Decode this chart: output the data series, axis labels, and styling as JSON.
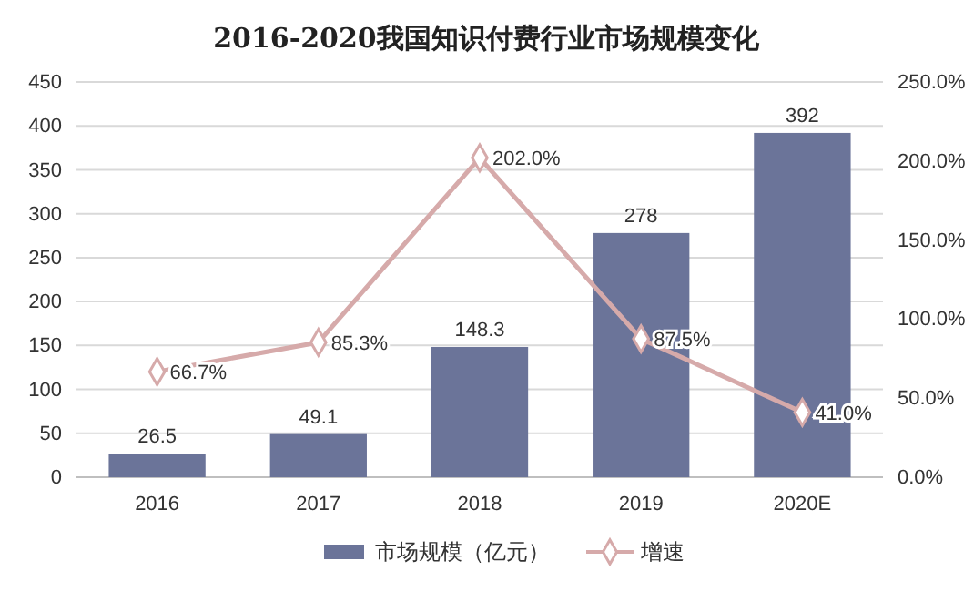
{
  "chart_data": {
    "type": "bar",
    "title": "2016-2020我国知识付费行业市场规模变化",
    "categories": [
      "2016",
      "2017",
      "2018",
      "2019",
      "2020E"
    ],
    "series": [
      {
        "name": "市场规模（亿元）",
        "color": "#6b7499",
        "values": [
          26.5,
          49.1,
          148.3,
          278,
          392
        ],
        "value_labels": [
          "26.5",
          "49.1",
          "148.3",
          "278",
          "392"
        ]
      },
      {
        "name": "增速",
        "type": "line",
        "axis": "y2",
        "color": "#d6aaaa",
        "marker": "diamond",
        "values": [
          66.7,
          85.3,
          202.0,
          87.5,
          41.0
        ],
        "value_labels": [
          "66.7%",
          "85.3%",
          "202.0%",
          "87.5%",
          "41.0%"
        ]
      }
    ],
    "ylim": [
      0,
      450
    ],
    "yticks": [
      0,
      50,
      100,
      150,
      200,
      250,
      300,
      350,
      400,
      450
    ],
    "y2lim": [
      0,
      250
    ],
    "y2ticks": [
      {
        "value": 0,
        "label": "0.0%"
      },
      {
        "value": 50,
        "label": "50.0%"
      },
      {
        "value": 100,
        "label": "100.0%"
      },
      {
        "value": 150,
        "label": "150.0%"
      },
      {
        "value": 200,
        "label": "200.0%"
      },
      {
        "value": 250,
        "label": "250.0%"
      }
    ],
    "grid": "y",
    "legend": "bottom"
  }
}
